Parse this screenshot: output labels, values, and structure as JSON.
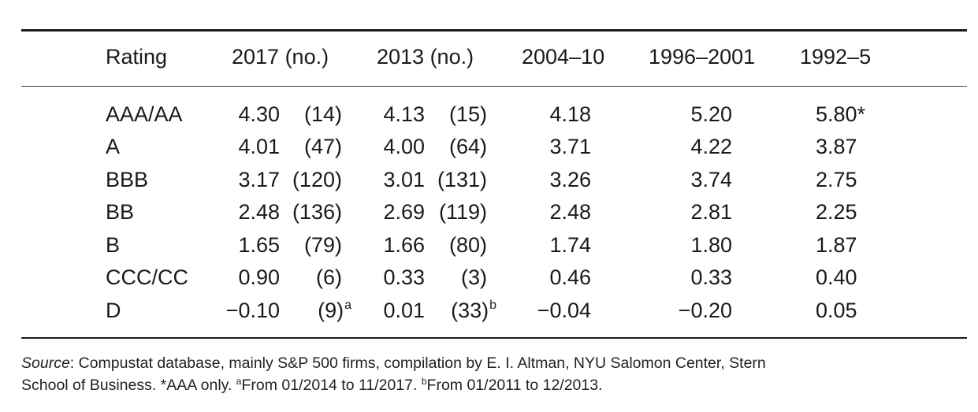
{
  "table": {
    "headers": [
      "Rating",
      "2017 (no.)",
      "2013 (no.)",
      "2004–10",
      "1996–2001",
      "1992–5"
    ],
    "rows": [
      {
        "rating": "AAA/AA",
        "v2017": "4.30",
        "n2017": "(14)",
        "v2013": "4.13",
        "n2013": "(15)",
        "v0410": "4.18",
        "v9601": "5.20",
        "v925": "5.80*"
      },
      {
        "rating": "A",
        "v2017": "4.01",
        "n2017": "(47)",
        "v2013": "4.00",
        "n2013": "(64)",
        "v0410": "3.71",
        "v9601": "4.22",
        "v925": "3.87"
      },
      {
        "rating": "BBB",
        "v2017": "3.17",
        "n2017": "(120)",
        "v2013": "3.01",
        "n2013": "(131)",
        "v0410": "3.26",
        "v9601": "3.74",
        "v925": "2.75"
      },
      {
        "rating": "BB",
        "v2017": "2.48",
        "n2017": "(136)",
        "v2013": "2.69",
        "n2013": "(119)",
        "v0410": "2.48",
        "v9601": "2.81",
        "v925": "2.25"
      },
      {
        "rating": "B",
        "v2017": "1.65",
        "n2017": "(79)",
        "v2013": "1.66",
        "n2013": "(80)",
        "v0410": "1.74",
        "v9601": "1.80",
        "v925": "1.87"
      },
      {
        "rating": "CCC/CC",
        "v2017": "0.90",
        "n2017": "(6)",
        "v2013": "0.33",
        "n2013": "(3)",
        "v0410": "0.46",
        "v9601": "0.33",
        "v925": "0.40"
      },
      {
        "rating": "D",
        "v2017": "−0.10",
        "n2017": "(9)",
        "sup2017": "a",
        "v2013": "0.01",
        "n2013": "(33)",
        "sup2013": "b",
        "v0410": "−0.04",
        "v9601": "−0.20",
        "v925": "0.05"
      }
    ]
  },
  "source_note": {
    "label": "Source",
    "line1": ": Compustat database, mainly S&P 500 firms, compilation by E. I. Altman, NYU Salomon Center, Stern",
    "line2a": "School of Business. *AAA only. ",
    "sup_a": "a",
    "line2b": "From 01/2014 to 11/2017. ",
    "sup_b": "b",
    "line2c": "From 01/2011 to 12/2013."
  }
}
